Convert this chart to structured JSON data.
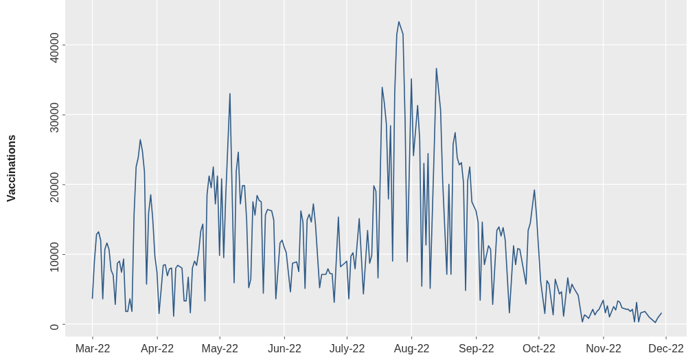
{
  "chart_data": {
    "type": "line",
    "ylabel": "Vaccinations",
    "xlim": [
      "2022-02-16",
      "2022-12-11"
    ],
    "xticks": [
      {
        "value": "2022-03-01",
        "label": "Mar-22"
      },
      {
        "value": "2022-04-01",
        "label": "Apr-22"
      },
      {
        "value": "2022-05-01",
        "label": "May-22"
      },
      {
        "value": "2022-06-01",
        "label": "Jun-22"
      },
      {
        "value": "2022-07-01",
        "label": "July-22"
      },
      {
        "value": "2022-08-01",
        "label": "Aug-22"
      },
      {
        "value": "2022-09-01",
        "label": "Sep-22"
      },
      {
        "value": "2022-10-01",
        "label": "Oct-22"
      },
      {
        "value": "2022-11-01",
        "label": "Nov-22"
      },
      {
        "value": "2022-12-01",
        "label": "Dec-22"
      }
    ],
    "ylim": [
      -1800,
      46400
    ],
    "yticks": [
      0,
      10000,
      20000,
      30000,
      40000
    ],
    "grid": true,
    "marker": "none",
    "line_style": "solid",
    "x": [
      "2022-03-01",
      "2022-03-02",
      "2022-03-03",
      "2022-03-04",
      "2022-03-05",
      "2022-03-06",
      "2022-03-07",
      "2022-03-08",
      "2022-03-09",
      "2022-03-10",
      "2022-03-11",
      "2022-03-12",
      "2022-03-13",
      "2022-03-14",
      "2022-03-15",
      "2022-03-16",
      "2022-03-17",
      "2022-03-18",
      "2022-03-19",
      "2022-03-20",
      "2022-03-21",
      "2022-03-22",
      "2022-03-23",
      "2022-03-24",
      "2022-03-25",
      "2022-03-26",
      "2022-03-27",
      "2022-03-28",
      "2022-03-29",
      "2022-03-30",
      "2022-03-31",
      "2022-04-01",
      "2022-04-02",
      "2022-04-04",
      "2022-04-05",
      "2022-04-06",
      "2022-04-07",
      "2022-04-08",
      "2022-04-09",
      "2022-04-10",
      "2022-04-11",
      "2022-04-13",
      "2022-04-14",
      "2022-04-15",
      "2022-04-16",
      "2022-04-17",
      "2022-04-18",
      "2022-04-19",
      "2022-04-20",
      "2022-04-21",
      "2022-04-22",
      "2022-04-23",
      "2022-04-24",
      "2022-04-25",
      "2022-04-26",
      "2022-04-27",
      "2022-04-28",
      "2022-04-29",
      "2022-04-30",
      "2022-05-01",
      "2022-05-02",
      "2022-05-03",
      "2022-05-04",
      "2022-05-06",
      "2022-05-08",
      "2022-05-09",
      "2022-05-10",
      "2022-05-11",
      "2022-05-12",
      "2022-05-13",
      "2022-05-14",
      "2022-05-15",
      "2022-05-16",
      "2022-05-17",
      "2022-05-18",
      "2022-05-19",
      "2022-05-20",
      "2022-05-21",
      "2022-05-22",
      "2022-05-23",
      "2022-05-24",
      "2022-05-26",
      "2022-05-27",
      "2022-05-28",
      "2022-05-30",
      "2022-05-31",
      "2022-06-01",
      "2022-06-02",
      "2022-06-03",
      "2022-06-04",
      "2022-06-05",
      "2022-06-07",
      "2022-06-08",
      "2022-06-09",
      "2022-06-10",
      "2022-06-11",
      "2022-06-12",
      "2022-06-13",
      "2022-06-14",
      "2022-06-15",
      "2022-06-16",
      "2022-06-18",
      "2022-06-19",
      "2022-06-21",
      "2022-06-22",
      "2022-06-23",
      "2022-06-24",
      "2022-06-25",
      "2022-06-27",
      "2022-06-28",
      "2022-06-30",
      "2022-07-01",
      "2022-07-02",
      "2022-07-03",
      "2022-07-04",
      "2022-07-05",
      "2022-07-07",
      "2022-07-09",
      "2022-07-11",
      "2022-07-12",
      "2022-07-13",
      "2022-07-14",
      "2022-07-15",
      "2022-07-16",
      "2022-07-18",
      "2022-07-19",
      "2022-07-20",
      "2022-07-21",
      "2022-07-22",
      "2022-07-23",
      "2022-07-24",
      "2022-07-25",
      "2022-07-26",
      "2022-07-28",
      "2022-07-29",
      "2022-07-30",
      "2022-08-01",
      "2022-08-02",
      "2022-08-04",
      "2022-08-05",
      "2022-08-06",
      "2022-08-07",
      "2022-08-08",
      "2022-08-09",
      "2022-08-10",
      "2022-08-12",
      "2022-08-13",
      "2022-08-15",
      "2022-08-16",
      "2022-08-18",
      "2022-08-19",
      "2022-08-20",
      "2022-08-21",
      "2022-08-22",
      "2022-08-23",
      "2022-08-24",
      "2022-08-25",
      "2022-08-26",
      "2022-08-27",
      "2022-08-28",
      "2022-08-29",
      "2022-08-30",
      "2022-09-01",
      "2022-09-02",
      "2022-09-03",
      "2022-09-04",
      "2022-09-05",
      "2022-09-07",
      "2022-09-08",
      "2022-09-09",
      "2022-09-11",
      "2022-09-12",
      "2022-09-13",
      "2022-09-14",
      "2022-09-15",
      "2022-09-17",
      "2022-09-19",
      "2022-09-20",
      "2022-09-21",
      "2022-09-22",
      "2022-09-25",
      "2022-09-26",
      "2022-09-27",
      "2022-09-29",
      "2022-09-30",
      "2022-10-02",
      "2022-10-04",
      "2022-10-05",
      "2022-10-06",
      "2022-10-08",
      "2022-10-09",
      "2022-10-11",
      "2022-10-12",
      "2022-10-13",
      "2022-10-15",
      "2022-10-16",
      "2022-10-17",
      "2022-10-18",
      "2022-10-20",
      "2022-10-22",
      "2022-10-23",
      "2022-10-24",
      "2022-10-25",
      "2022-10-27",
      "2022-10-28",
      "2022-10-29",
      "2022-10-30",
      "2022-11-01",
      "2022-11-02",
      "2022-11-03",
      "2022-11-04",
      "2022-11-06",
      "2022-11-07",
      "2022-11-08",
      "2022-11-09",
      "2022-11-10",
      "2022-11-12",
      "2022-11-13",
      "2022-11-14",
      "2022-11-15",
      "2022-11-16",
      "2022-11-17",
      "2022-11-18",
      "2022-11-19",
      "2022-11-21",
      "2022-11-23",
      "2022-11-26",
      "2022-11-27",
      "2022-11-29"
    ],
    "series": [
      {
        "color": "#2e5a87",
        "values": [
          3600,
          9000,
          12800,
          13200,
          12000,
          3600,
          10700,
          11600,
          10700,
          7700,
          7000,
          2800,
          8700,
          9000,
          7400,
          9300,
          1800,
          1800,
          3600,
          1800,
          15600,
          22500,
          23800,
          26400,
          24800,
          21800,
          5700,
          15900,
          18500,
          14900,
          9700,
          7400,
          1500,
          8400,
          8500,
          6900,
          7900,
          8000,
          1100,
          8000,
          8400,
          8000,
          3300,
          3300,
          6700,
          1600,
          8000,
          9000,
          8400,
          10300,
          13300,
          14300,
          3300,
          18500,
          21200,
          19500,
          22500,
          17200,
          21200,
          9800,
          20800,
          9500,
          18500,
          33000,
          5900,
          21800,
          24600,
          17200,
          19800,
          19800,
          14900,
          5200,
          6400,
          17500,
          15600,
          18400,
          17700,
          17500,
          4400,
          15600,
          16400,
          16200,
          14900,
          3600,
          11600,
          12000,
          11000,
          10200,
          7400,
          4600,
          8700,
          8900,
          7500,
          16200,
          14600,
          5100,
          14900,
          15700,
          14600,
          17200,
          14300,
          5200,
          7100,
          7100,
          7900,
          7200,
          7200,
          3100,
          15300,
          8200,
          8700,
          9000,
          3600,
          9700,
          10200,
          7900,
          15100,
          4300,
          13400,
          8700,
          9800,
          19800,
          19000,
          6600,
          33900,
          31700,
          28700,
          17900,
          28400,
          9000,
          33000,
          41500,
          43300,
          41500,
          29000,
          8900,
          35100,
          24100,
          31300,
          26400,
          5400,
          23000,
          11300,
          24400,
          5100,
          25600,
          36600,
          30700,
          20500,
          7100,
          20000,
          7100,
          25700,
          27400,
          23800,
          22800,
          23100,
          20200,
          4800,
          20500,
          22500,
          17500,
          16200,
          14600,
          3400,
          14600,
          8500,
          11200,
          10700,
          2800,
          13400,
          13900,
          12600,
          13800,
          12000,
          1600,
          11200,
          8500,
          10800,
          10700,
          5700,
          13400,
          14400,
          19200,
          15600,
          6100,
          1500,
          6200,
          5700,
          1300,
          6400,
          4300,
          4600,
          1100,
          6600,
          4400,
          5700,
          5100,
          4100,
          300,
          1300,
          1100,
          800,
          2100,
          1300,
          1800,
          2100,
          3400,
          1600,
          2600,
          1000,
          2500,
          2000,
          3300,
          3100,
          2300,
          2100,
          2100,
          1800,
          2100,
          300,
          3100,
          300,
          1600,
          1800,
          1000,
          200,
          800,
          1600
        ]
      }
    ]
  }
}
